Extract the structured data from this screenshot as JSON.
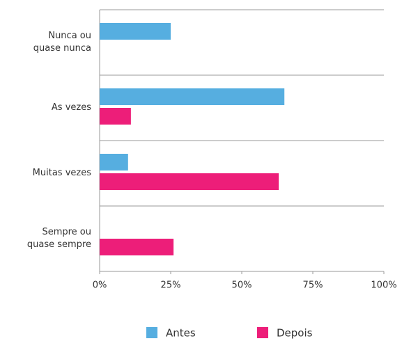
{
  "chart_data": {
    "type": "barh",
    "categories": [
      "Nunca ou quase nunca",
      "As vezes",
      "Muitas vezes",
      "Sempre ou quase sempre"
    ],
    "series": [
      {
        "name": "Antes",
        "color": "#56aee0",
        "values": [
          25,
          65,
          10,
          0
        ]
      },
      {
        "name": "Depois",
        "color": "#ed1e79",
        "values": [
          0,
          11,
          63,
          26
        ]
      }
    ],
    "xlim": [
      0,
      100
    ],
    "xticks": [
      {
        "value": 0,
        "label": "0%"
      },
      {
        "value": 25,
        "label": "25%"
      },
      {
        "value": 50,
        "label": "50%"
      },
      {
        "value": 75,
        "label": "75%"
      },
      {
        "value": 100,
        "label": "100%"
      }
    ]
  }
}
